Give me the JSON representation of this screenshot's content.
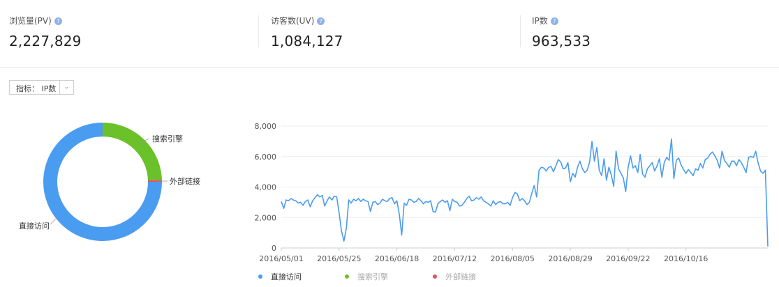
{
  "stats": [
    {
      "label": "浏览量(PV)",
      "value": "2,227,829",
      "help_icon": "help-icon"
    },
    {
      "label": "访客数(UV)",
      "value": "1,084,127",
      "help_icon": "help-icon"
    },
    {
      "label": "IP数",
      "value": "963,533",
      "help_icon": "help-icon"
    }
  ],
  "metric_selector": {
    "label": "指标：",
    "value": "IP数",
    "icon": "chevron-down-icon"
  },
  "colors": {
    "direct": "#4a9cf0",
    "search": "#6ac12a",
    "external": "#e8505b",
    "line": "#4a9cf0",
    "grid": "#eeeeee"
  },
  "donut": {
    "labels": {
      "search": "搜索引擎",
      "external": "外部链接",
      "direct": "直接访问"
    },
    "values_pct": {
      "direct": 75,
      "search": 24.5,
      "external": 0.5
    }
  },
  "chart_data": {
    "type": "line",
    "ylim": [
      0,
      8000
    ],
    "y_ticks": [
      "0",
      "2,000",
      "4,000",
      "6,000",
      "8,000"
    ],
    "x_ticks": [
      "2016/05/01",
      "2016/05/25",
      "2016/06/18",
      "2016/07/12",
      "2016/08/05",
      "2016/08/29",
      "2016/09/22",
      "2016/10/16"
    ],
    "x_tick_day_index": [
      0,
      24,
      48,
      72,
      96,
      120,
      144,
      168
    ],
    "series": [
      {
        "name": "直接访问",
        "values": [
          3050,
          2600,
          3150,
          3100,
          3250,
          3150,
          3100,
          2950,
          3000,
          2800,
          3050,
          3150,
          2700,
          3100,
          3300,
          3500,
          3350,
          3450,
          2750,
          3100,
          3350,
          3150,
          3400,
          3350,
          2300,
          1100,
          450,
          1300,
          3150,
          2950,
          3200,
          3100,
          3250,
          3050,
          3200,
          3100,
          3050,
          2400,
          3000,
          3050,
          2850,
          2950,
          3200,
          3100,
          3050,
          3250,
          3300,
          2900,
          3100,
          2200,
          850,
          2950,
          2800,
          3200,
          3150,
          3000,
          3050,
          3250,
          3100,
          2900,
          3050,
          3000,
          3100,
          2400,
          2350,
          2900,
          3050,
          3150,
          3000,
          3100,
          2450,
          3200,
          3050,
          3000,
          2750,
          2800,
          3000,
          3250,
          3400,
          3100,
          3150,
          3300,
          3200,
          3350,
          3100,
          3000,
          2900,
          2750,
          3100,
          2850,
          3000,
          3050,
          2900,
          2900,
          3000,
          2800,
          3300,
          3650,
          3550,
          3100,
          3250,
          3100,
          2850,
          3000,
          3600,
          4100,
          3350,
          5100,
          5300,
          5250,
          5050,
          5300,
          5350,
          5000,
          5400,
          5800,
          5650,
          5200,
          5250,
          5600,
          4350,
          4900,
          4650,
          5300,
          5700,
          5200,
          4950,
          5100,
          5650,
          7000,
          5700,
          6600,
          5100,
          4750,
          5850,
          4450,
          5300,
          4800,
          4050,
          6350,
          5200,
          4900,
          4600,
          3700,
          5300,
          6050,
          5250,
          5400,
          4950,
          6150,
          4850,
          4650,
          5200,
          5400,
          5600,
          5050,
          5400,
          5850,
          4650,
          5600,
          5950,
          5750,
          7150,
          4550,
          5750,
          5900,
          5450,
          5150,
          4900,
          5150,
          4950,
          4750,
          5200,
          5100,
          5550,
          5250,
          5800,
          5900,
          6150,
          6300,
          6050,
          5750,
          5250,
          6350,
          5750,
          5550,
          5300,
          5700,
          5700,
          5400,
          5800,
          5600,
          5300,
          4950,
          5950,
          6000,
          5950,
          6350,
          5550,
          5050,
          4900,
          5100,
          100
        ]
      }
    ]
  },
  "legend": {
    "items": [
      "直接访问",
      "搜索引擎",
      "外部链接"
    ]
  }
}
